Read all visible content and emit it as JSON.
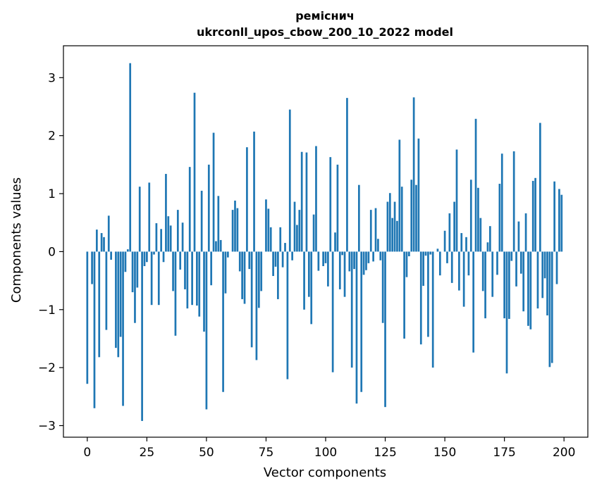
{
  "chart_data": {
    "type": "bar",
    "title": "ремiснич",
    "subtitle": "ukrconll_upos_cbow_200_10_2022 model",
    "xlabel": "Vector components",
    "ylabel": "Components values",
    "x_start": 0,
    "xlim": [
      -10,
      210
    ],
    "ylim": [
      -3.2,
      3.55
    ],
    "xticks": [
      0,
      25,
      50,
      75,
      100,
      125,
      150,
      175,
      200
    ],
    "yticks": [
      -3,
      -2,
      -1,
      0,
      1,
      2,
      3
    ],
    "ytick_labels": [
      "−3",
      "−2",
      "−1",
      "0",
      "1",
      "2",
      "3"
    ],
    "grid": false,
    "bar_color": "#1f77b4",
    "values": [
      -2.28,
      0.0,
      -0.56,
      -2.7,
      0.38,
      -1.82,
      0.32,
      0.25,
      -1.35,
      0.62,
      -0.14,
      0.0,
      -1.66,
      -1.82,
      -1.47,
      -2.66,
      -0.35,
      0.04,
      3.25,
      -0.7,
      -1.23,
      -0.62,
      1.12,
      -2.92,
      -0.25,
      -0.18,
      1.19,
      -0.92,
      -0.05,
      0.49,
      -0.92,
      0.39,
      -0.18,
      1.34,
      0.61,
      0.45,
      -0.68,
      -1.45,
      0.72,
      -0.31,
      0.5,
      -0.65,
      -0.98,
      1.46,
      -0.92,
      2.74,
      -0.93,
      -1.12,
      1.05,
      -1.38,
      -2.72,
      1.5,
      -0.58,
      2.05,
      0.18,
      0.96,
      0.2,
      -2.42,
      -0.72,
      -0.1,
      0.0,
      0.72,
      0.88,
      0.75,
      -0.34,
      -0.82,
      -0.9,
      1.8,
      -0.3,
      -1.65,
      2.07,
      -1.87,
      -0.97,
      -0.68,
      0.0,
      0.9,
      0.74,
      0.42,
      -0.42,
      -0.26,
      -0.82,
      0.42,
      -0.27,
      0.15,
      -2.2,
      2.45,
      -0.15,
      0.86,
      0.46,
      0.72,
      1.72,
      -1.0,
      1.71,
      -0.78,
      -1.25,
      0.64,
      1.82,
      -0.33,
      0.0,
      -0.25,
      -0.2,
      -0.6,
      1.63,
      -2.08,
      0.33,
      1.5,
      -0.65,
      -0.06,
      -0.78,
      2.65,
      -0.34,
      -2.0,
      -0.3,
      -2.62,
      1.15,
      -2.42,
      -0.4,
      -0.32,
      -0.2,
      0.72,
      -0.17,
      0.75,
      0.22,
      -0.15,
      -1.23,
      -2.68,
      0.86,
      1.01,
      0.58,
      0.86,
      0.53,
      1.93,
      1.12,
      -1.5,
      -0.44,
      -0.08,
      1.24,
      2.66,
      1.15,
      1.95,
      -1.6,
      -0.59,
      -0.07,
      -1.47,
      -0.05,
      -2.0,
      0.0,
      0.05,
      -0.41,
      0.0,
      0.36,
      -0.2,
      0.66,
      -0.54,
      0.86,
      1.76,
      -0.67,
      0.32,
      -0.95,
      0.25,
      -0.41,
      1.24,
      -1.74,
      2.29,
      1.1,
      0.58,
      -0.68,
      -1.15,
      0.16,
      0.44,
      -0.78,
      0.0,
      -0.4,
      1.17,
      1.69,
      -1.15,
      -2.1,
      -1.16,
      -0.16,
      1.73,
      -0.6,
      0.52,
      -0.38,
      -1.03,
      0.66,
      -1.28,
      -1.34,
      1.22,
      1.27,
      -0.98,
      2.22,
      -0.8,
      -0.46,
      -1.1,
      -1.99,
      -1.92,
      1.21,
      -0.56,
      1.08,
      0.98
    ]
  }
}
